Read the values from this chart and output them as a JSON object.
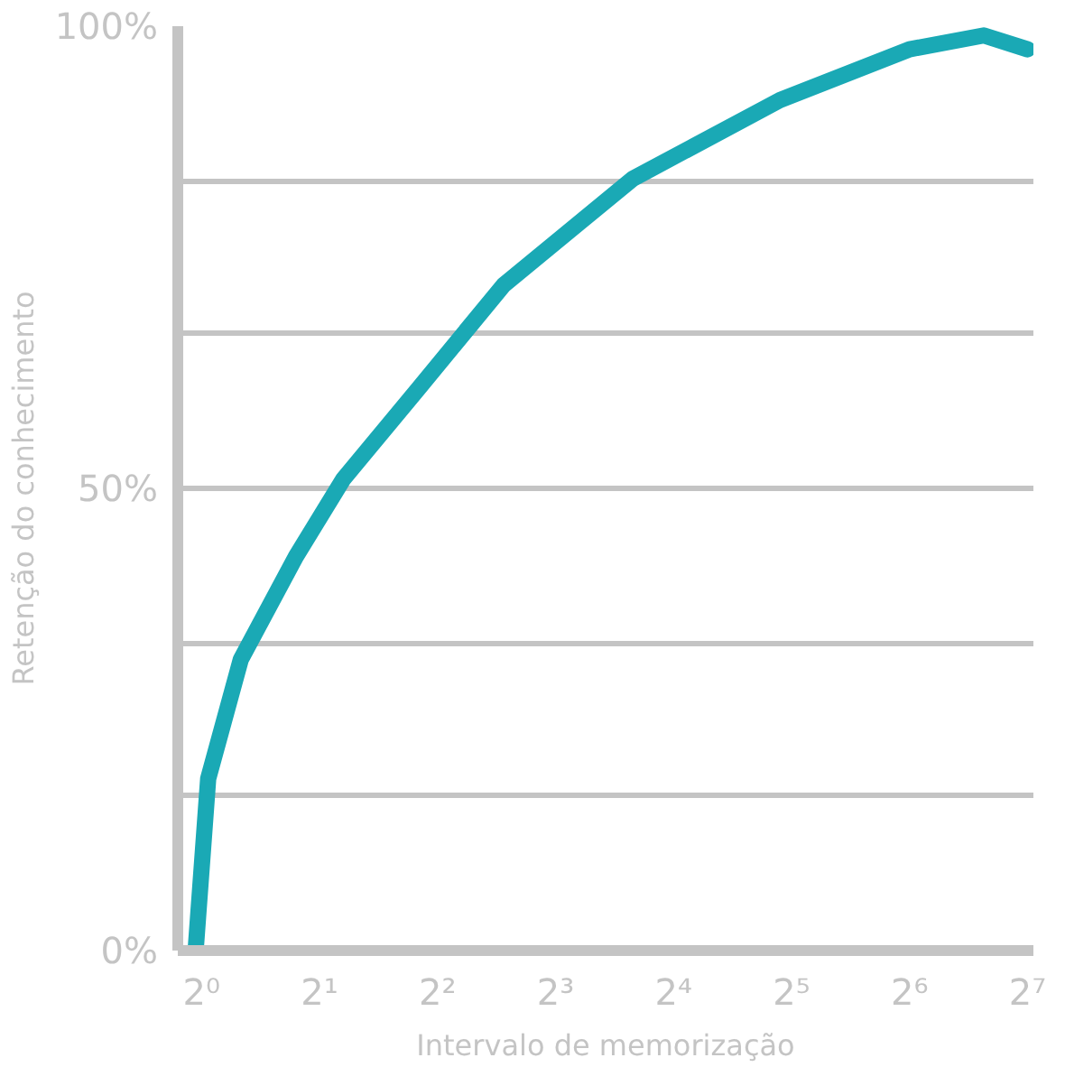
{
  "chart_data": {
    "type": "line",
    "xlabel": "Intervalo de memorização",
    "ylabel": "Retenção do conhecimento",
    "series": [
      {
        "color": "#1aa9b5",
        "x": [
          0.966,
          1.04,
          1.26,
          1.74,
          2.3,
          3.56,
          5.9,
          12.6,
          29.9,
          64,
          99,
          128
        ],
        "values": [
          0,
          18.6,
          31.5,
          42.6,
          51,
          60.7,
          72,
          83.5,
          92,
          97.5,
          99,
          97.5
        ]
      }
    ],
    "xlim": [
      0.87,
      132.5
    ],
    "ylim": [
      0,
      100
    ],
    "log": "x",
    "xticks": [
      {
        "value": 1,
        "label": "2⁰"
      },
      {
        "value": 2,
        "label": "2¹"
      },
      {
        "value": 4,
        "label": "2²"
      },
      {
        "value": 8,
        "label": "2³"
      },
      {
        "value": 16,
        "label": "2⁴"
      },
      {
        "value": 32,
        "label": "2⁵"
      },
      {
        "value": 64,
        "label": "2⁶"
      },
      {
        "value": 128,
        "label": "2⁷"
      }
    ],
    "yticks": [
      {
        "value": 0,
        "label": "0%"
      },
      {
        "value": 16.7,
        "label": null
      },
      {
        "value": 33.3,
        "label": null
      },
      {
        "value": 50,
        "label": "50%"
      },
      {
        "value": 66.7,
        "label": null
      },
      {
        "value": 83.3,
        "label": null
      },
      {
        "value": 100,
        "label": "100%"
      }
    ],
    "grid": "y",
    "marker": "none",
    "line_style": "solid"
  }
}
